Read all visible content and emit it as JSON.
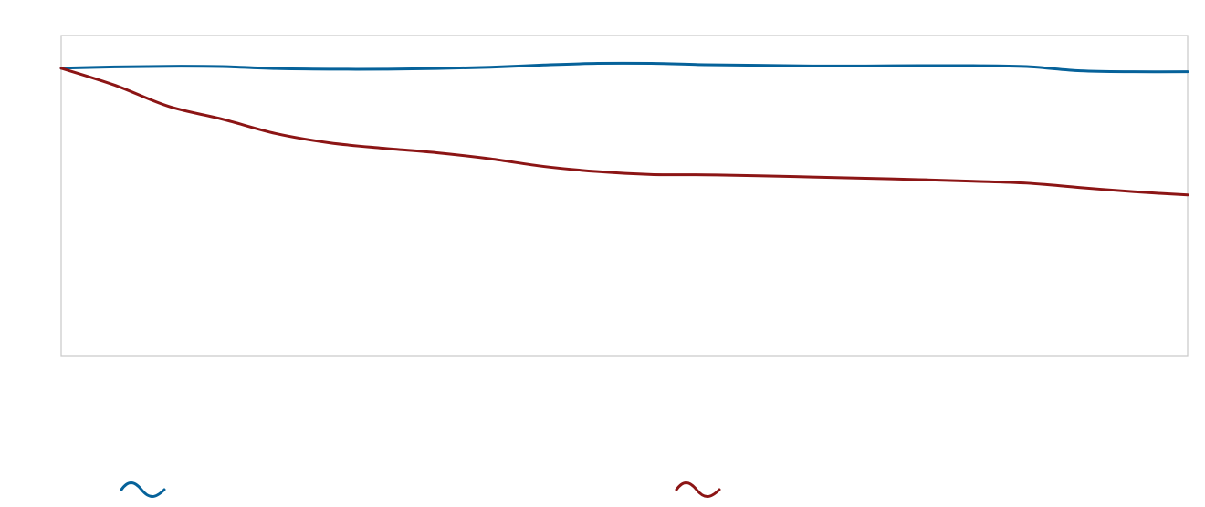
{
  "chart_data": {
    "type": "line",
    "title": "",
    "xlabel": "",
    "ylabel": "",
    "grid": false,
    "legend_position": "bottom",
    "x": [
      0,
      1,
      2,
      3,
      4,
      5,
      6,
      7,
      8,
      9,
      10,
      11,
      12,
      13,
      14,
      15,
      16,
      17,
      18,
      19,
      20,
      21
    ],
    "xlim": [
      0,
      21
    ],
    "ylim": [
      0,
      100
    ],
    "series": [
      {
        "name": "",
        "color": "#06629a",
        "values": [
          89.8,
          90.2,
          90.4,
          90.3,
          89.7,
          89.5,
          89.5,
          89.7,
          90.1,
          90.8,
          91.3,
          91.3,
          90.9,
          90.7,
          90.5,
          90.5,
          90.6,
          90.6,
          90.3,
          89.0,
          88.7,
          88.7
        ]
      },
      {
        "name": "",
        "color": "#8c1515",
        "values": [
          89.8,
          84.5,
          77.9,
          73.9,
          69.4,
          66.5,
          64.8,
          63.4,
          61.5,
          59.1,
          57.5,
          56.6,
          56.5,
          56.2,
          55.8,
          55.4,
          55.0,
          54.5,
          53.9,
          52.5,
          51.2,
          50.2
        ]
      }
    ]
  }
}
